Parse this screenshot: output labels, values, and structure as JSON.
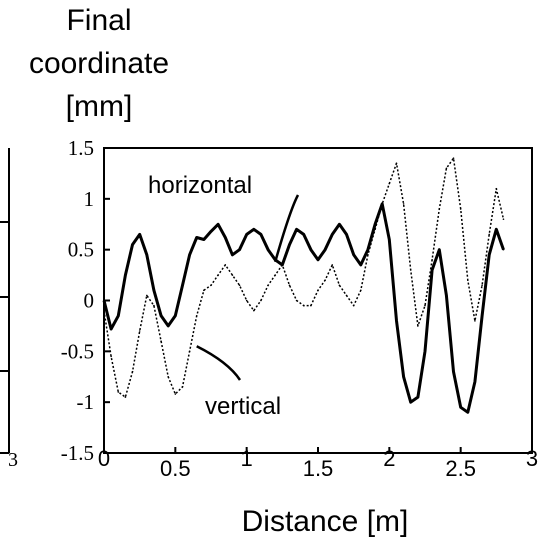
{
  "chart_data": {
    "type": "line",
    "ylabel_lines": [
      "Final",
      "coordinate",
      "[mm]"
    ],
    "xlabel": "Distance [m]",
    "xlim": [
      0,
      3
    ],
    "ylim": [
      -1.5,
      1.5
    ],
    "x_ticks": [
      0,
      0.5,
      1,
      1.5,
      2,
      2.5,
      3
    ],
    "x_tick_labels": [
      "0",
      "0.5",
      "1",
      "1.5",
      "2",
      "2.5",
      "3"
    ],
    "y_ticks": [
      1.5,
      1,
      0.5,
      0,
      -0.5,
      -1,
      -1.5
    ],
    "y_tick_labels": [
      "1.5",
      "1",
      "0.5",
      "0",
      "-0.5",
      "-1",
      "-1.5"
    ],
    "partial_left_panel_tick_label": "3",
    "grid": false,
    "series": [
      {
        "name": "horizontal",
        "color": "#000000",
        "style": "solid",
        "points": [
          [
            0.0,
            0.0
          ],
          [
            0.05,
            -0.28
          ],
          [
            0.1,
            -0.15
          ],
          [
            0.15,
            0.25
          ],
          [
            0.2,
            0.55
          ],
          [
            0.25,
            0.65
          ],
          [
            0.3,
            0.45
          ],
          [
            0.35,
            0.1
          ],
          [
            0.4,
            -0.15
          ],
          [
            0.45,
            -0.25
          ],
          [
            0.5,
            -0.15
          ],
          [
            0.55,
            0.15
          ],
          [
            0.6,
            0.45
          ],
          [
            0.65,
            0.62
          ],
          [
            0.7,
            0.6
          ],
          [
            0.75,
            0.68
          ],
          [
            0.8,
            0.75
          ],
          [
            0.85,
            0.62
          ],
          [
            0.9,
            0.45
          ],
          [
            0.95,
            0.5
          ],
          [
            1.0,
            0.65
          ],
          [
            1.05,
            0.7
          ],
          [
            1.1,
            0.65
          ],
          [
            1.15,
            0.5
          ],
          [
            1.2,
            0.4
          ],
          [
            1.25,
            0.35
          ],
          [
            1.3,
            0.55
          ],
          [
            1.35,
            0.7
          ],
          [
            1.4,
            0.65
          ],
          [
            1.45,
            0.5
          ],
          [
            1.5,
            0.4
          ],
          [
            1.55,
            0.5
          ],
          [
            1.6,
            0.65
          ],
          [
            1.65,
            0.75
          ],
          [
            1.7,
            0.65
          ],
          [
            1.75,
            0.45
          ],
          [
            1.8,
            0.35
          ],
          [
            1.85,
            0.5
          ],
          [
            1.9,
            0.75
          ],
          [
            1.95,
            0.95
          ],
          [
            2.0,
            0.6
          ],
          [
            2.05,
            -0.2
          ],
          [
            2.1,
            -0.75
          ],
          [
            2.15,
            -1.0
          ],
          [
            2.2,
            -0.95
          ],
          [
            2.25,
            -0.5
          ],
          [
            2.3,
            0.3
          ],
          [
            2.35,
            0.5
          ],
          [
            2.4,
            0.05
          ],
          [
            2.45,
            -0.7
          ],
          [
            2.5,
            -1.05
          ],
          [
            2.55,
            -1.1
          ],
          [
            2.6,
            -0.8
          ],
          [
            2.65,
            -0.15
          ],
          [
            2.7,
            0.45
          ],
          [
            2.75,
            0.7
          ],
          [
            2.8,
            0.5
          ]
        ]
      },
      {
        "name": "vertical",
        "color": "#000000",
        "style": "dotted",
        "points": [
          [
            0.0,
            -0.1
          ],
          [
            0.05,
            -0.55
          ],
          [
            0.1,
            -0.9
          ],
          [
            0.15,
            -0.95
          ],
          [
            0.2,
            -0.7
          ],
          [
            0.25,
            -0.3
          ],
          [
            0.3,
            0.05
          ],
          [
            0.35,
            -0.05
          ],
          [
            0.4,
            -0.4
          ],
          [
            0.45,
            -0.75
          ],
          [
            0.5,
            -0.92
          ],
          [
            0.55,
            -0.85
          ],
          [
            0.6,
            -0.5
          ],
          [
            0.65,
            -0.15
          ],
          [
            0.7,
            0.1
          ],
          [
            0.75,
            0.15
          ],
          [
            0.8,
            0.25
          ],
          [
            0.85,
            0.35
          ],
          [
            0.9,
            0.25
          ],
          [
            0.95,
            0.15
          ],
          [
            1.0,
            0.0
          ],
          [
            1.05,
            -0.1
          ],
          [
            1.1,
            0.0
          ],
          [
            1.15,
            0.15
          ],
          [
            1.2,
            0.25
          ],
          [
            1.25,
            0.35
          ],
          [
            1.3,
            0.15
          ],
          [
            1.35,
            0.0
          ],
          [
            1.4,
            -0.05
          ],
          [
            1.45,
            -0.05
          ],
          [
            1.5,
            0.1
          ],
          [
            1.55,
            0.2
          ],
          [
            1.6,
            0.35
          ],
          [
            1.65,
            0.15
          ],
          [
            1.7,
            0.05
          ],
          [
            1.75,
            -0.05
          ],
          [
            1.8,
            0.1
          ],
          [
            1.85,
            0.45
          ],
          [
            1.9,
            0.7
          ],
          [
            1.95,
            0.95
          ],
          [
            2.0,
            1.15
          ],
          [
            2.05,
            1.35
          ],
          [
            2.1,
            0.95
          ],
          [
            2.15,
            0.3
          ],
          [
            2.2,
            -0.25
          ],
          [
            2.25,
            -0.05
          ],
          [
            2.3,
            0.4
          ],
          [
            2.35,
            0.9
          ],
          [
            2.4,
            1.3
          ],
          [
            2.45,
            1.4
          ],
          [
            2.5,
            0.9
          ],
          [
            2.55,
            0.2
          ],
          [
            2.6,
            -0.2
          ],
          [
            2.65,
            0.15
          ],
          [
            2.7,
            0.65
          ],
          [
            2.75,
            1.1
          ],
          [
            2.8,
            0.8
          ]
        ]
      }
    ],
    "annotations": [
      {
        "text": "horizontal",
        "series": "horizontal",
        "arrow_to": [
          1.2,
          0.38
        ]
      },
      {
        "text": "vertical",
        "series": "vertical",
        "arrow_to": [
          0.65,
          -0.45
        ]
      }
    ]
  }
}
